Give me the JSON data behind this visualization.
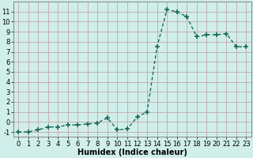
{
  "x": [
    0,
    1,
    2,
    3,
    4,
    5,
    6,
    7,
    8,
    9,
    10,
    11,
    12,
    13,
    14,
    15,
    16,
    17,
    18,
    19,
    20,
    21,
    22,
    23
  ],
  "y": [
    -1,
    -1,
    -0.8,
    -0.5,
    -0.5,
    -0.3,
    -0.3,
    -0.2,
    -0.1,
    0.4,
    -0.8,
    -0.7,
    0.5,
    1.0,
    7.5,
    11.2,
    11.0,
    10.5,
    8.5,
    8.7,
    8.7,
    8.8,
    7.5,
    7.5
  ],
  "line_color": "#1a6b5a",
  "bg_color": "#d0eeea",
  "grid_color": "#c4a8a8",
  "xlabel": "Humidex (Indice chaleur)",
  "xlim": [
    -0.5,
    23.5
  ],
  "ylim": [
    -1.5,
    12
  ],
  "yticks": [
    -1,
    0,
    1,
    2,
    3,
    4,
    5,
    6,
    7,
    8,
    9,
    10,
    11
  ],
  "xticks": [
    0,
    1,
    2,
    3,
    4,
    5,
    6,
    7,
    8,
    9,
    10,
    11,
    12,
    13,
    14,
    15,
    16,
    17,
    18,
    19,
    20,
    21,
    22,
    23
  ],
  "marker": "+",
  "marker_size": 4,
  "line_width": 1.0,
  "xlabel_fontsize": 7,
  "tick_fontsize": 6
}
